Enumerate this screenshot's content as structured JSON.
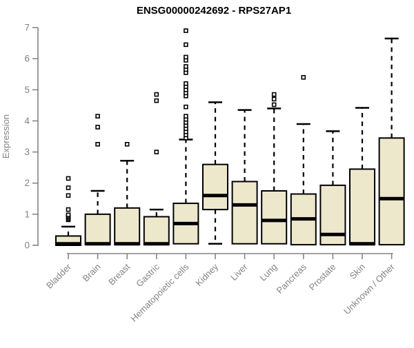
{
  "chart_data": {
    "type": "boxplot",
    "title": "ENSG00000242692 - RPS27AP1",
    "ylabel": "Expression",
    "xlabel": "",
    "ylim": [
      0,
      7
    ],
    "yticks": [
      0,
      1,
      2,
      3,
      4,
      5,
      6,
      7
    ],
    "grid": "off",
    "legend": "none",
    "categories": [
      "Bladder",
      "Brain",
      "Breast",
      "Gastric",
      "Hematopoietic cells",
      "Kidney",
      "Liver",
      "Lung",
      "Pancreas",
      "Prostate",
      "Skin",
      "Unknown / Other"
    ],
    "boxes": [
      {
        "label": "Bladder",
        "whisker_low": 0.0,
        "q1": 0.0,
        "median": 0.05,
        "q3": 0.3,
        "whisker_high": 0.6,
        "outliers": [
          0.82,
          0.86,
          0.9,
          0.94,
          0.98,
          1.15,
          1.6,
          1.85,
          2.15
        ]
      },
      {
        "label": "Brain",
        "whisker_low": 0.0,
        "q1": 0.02,
        "median": 0.05,
        "q3": 1.0,
        "whisker_high": 1.75,
        "outliers": [
          3.25,
          3.8,
          4.15
        ]
      },
      {
        "label": "Breast",
        "whisker_low": 0.0,
        "q1": 0.02,
        "median": 0.05,
        "q3": 1.2,
        "whisker_high": 2.72,
        "outliers": [
          3.25
        ]
      },
      {
        "label": "Gastric",
        "whisker_low": 0.0,
        "q1": 0.02,
        "median": 0.05,
        "q3": 0.92,
        "whisker_high": 1.15,
        "outliers": [
          3.0,
          4.65,
          4.85
        ]
      },
      {
        "label": "Hematopoietic cells",
        "whisker_low": 0.05,
        "q1": 0.05,
        "median": 0.7,
        "q3": 1.35,
        "whisker_high": 3.4,
        "outliers": [
          3.45,
          3.55,
          3.65,
          3.75,
          3.85,
          3.95,
          4.05,
          4.15,
          4.45,
          4.8,
          4.9,
          5.0,
          5.1,
          5.2,
          5.55,
          5.65,
          5.75,
          5.95,
          6.05,
          6.45,
          6.9
        ]
      },
      {
        "label": "Kidney",
        "whisker_low": 0.05,
        "q1": 1.15,
        "median": 1.6,
        "q3": 2.6,
        "whisker_high": 4.6,
        "outliers": []
      },
      {
        "label": "Liver",
        "whisker_low": 0.05,
        "q1": 0.05,
        "median": 1.3,
        "q3": 2.05,
        "whisker_high": 4.35,
        "outliers": []
      },
      {
        "label": "Lung",
        "whisker_low": 0.05,
        "q1": 0.05,
        "median": 0.8,
        "q3": 1.75,
        "whisker_high": 4.4,
        "outliers": [
          4.52,
          4.7,
          4.85
        ]
      },
      {
        "label": "Pancreas",
        "whisker_low": 0.0,
        "q1": 0.02,
        "median": 0.85,
        "q3": 1.65,
        "whisker_high": 3.9,
        "outliers": [
          5.4
        ]
      },
      {
        "label": "Prostate",
        "whisker_low": 0.0,
        "q1": 0.02,
        "median": 0.35,
        "q3": 1.93,
        "whisker_high": 3.67,
        "outliers": []
      },
      {
        "label": "Skin",
        "whisker_low": 0.0,
        "q1": 0.02,
        "median": 0.05,
        "q3": 2.45,
        "whisker_high": 4.42,
        "outliers": []
      },
      {
        "label": "Unknown / Other",
        "whisker_low": 0.02,
        "q1": 0.02,
        "median": 1.5,
        "q3": 3.45,
        "whisker_high": 6.65,
        "outliers": []
      }
    ],
    "colors": {
      "box_fill": "#EDE8CC",
      "box_border": "#000000",
      "median": "#000000",
      "whisker": "#000000",
      "axis": "#848484",
      "tick_label": "#848484",
      "title": "#000000",
      "background": "#ffffff"
    }
  }
}
